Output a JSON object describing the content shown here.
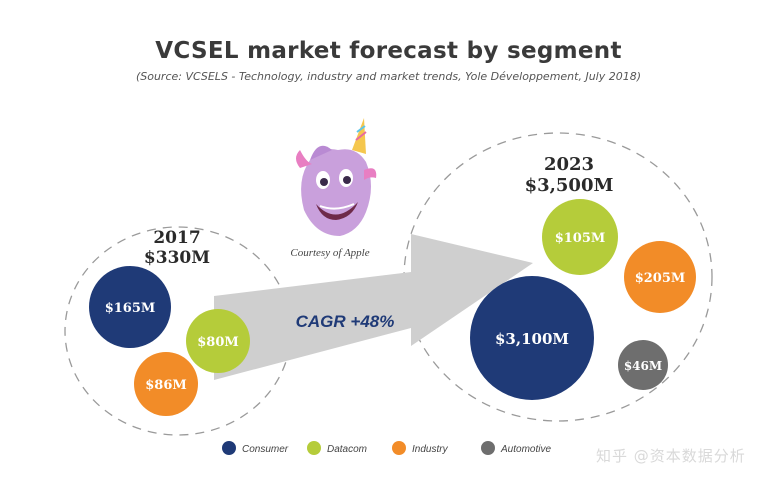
{
  "chart_data": {
    "type": "bubble",
    "title": "VCSEL market forecast by segment",
    "subtitle": "(Source: VCSELS - Technology, industry and market trends, Yole Développement, July 2018)",
    "periods": [
      {
        "year": "2017",
        "total_label": "$330M",
        "total": 330,
        "segments": [
          {
            "name": "Consumer",
            "value": 165,
            "label": "$165M"
          },
          {
            "name": "Datacom",
            "value": 80,
            "label": "$80M"
          },
          {
            "name": "Industry",
            "value": 86,
            "label": "$86M"
          }
        ]
      },
      {
        "year": "2023",
        "total_label": "$3,500M",
        "total": 3500,
        "segments": [
          {
            "name": "Consumer",
            "value": 3100,
            "label": "$3,100M"
          },
          {
            "name": "Datacom",
            "value": 105,
            "label": "$105M"
          },
          {
            "name": "Industry",
            "value": 205,
            "label": "$205M"
          },
          {
            "name": "Automotive",
            "value": 46,
            "label": "$46M"
          }
        ]
      }
    ],
    "cagr_label": "CAGR +48%",
    "image_caption": "Courtesy of Apple",
    "legend": [
      {
        "name": "Consumer",
        "color": "#1f3a77"
      },
      {
        "name": "Datacom",
        "color": "#b5cc3a"
      },
      {
        "name": "Industry",
        "color": "#f28c28"
      },
      {
        "name": "Automotive",
        "color": "#6e6e6e"
      }
    ]
  },
  "colors": {
    "title": "#3a3a3a",
    "arrow": "#cfcfcf",
    "label_dark": "#2a2a2a",
    "cagr": "#1f3a77",
    "dash": "#9a9a9a"
  },
  "watermark": "知乎 @资本数据分析"
}
